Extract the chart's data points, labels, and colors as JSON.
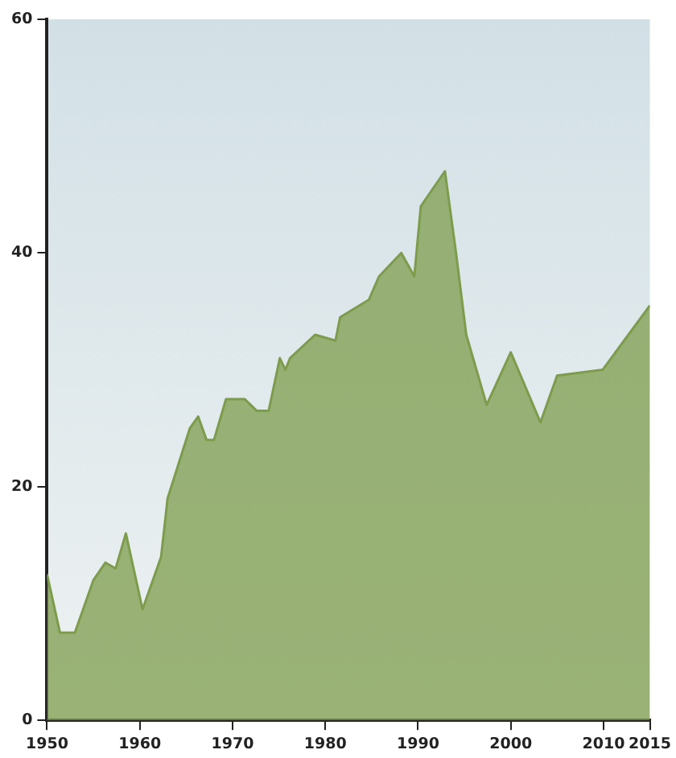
{
  "chart_data": {
    "type": "area",
    "x": [
      1950,
      1951.4,
      1953,
      1955,
      1956.3,
      1957.4,
      1958.5,
      1960.3,
      1962.3,
      1963,
      1965.4,
      1966.3,
      1967.2,
      1968,
      1969.3,
      1971.3,
      1972.6,
      1973.9,
      1975.1,
      1975.7,
      1976.2,
      1978.9,
      1981.1,
      1981.6,
      1984.7,
      1985.8,
      1988.2,
      1989.6,
      1990.3,
      1992.9,
      1994.1,
      1995.2,
      1997.4,
      2000,
      2003.2,
      2005,
      2009.9,
      2015
    ],
    "series": [
      {
        "color": "#7d9c4c",
        "values": [
          12.5,
          7.5,
          7.5,
          12,
          13.5,
          13,
          16,
          9.5,
          14,
          19,
          25,
          26,
          24,
          24,
          27.5,
          27.5,
          26.5,
          26.5,
          31,
          30,
          31,
          33,
          32.5,
          34.5,
          36,
          38,
          40,
          38,
          44,
          47,
          40,
          33,
          27,
          31.5,
          25.5,
          29.5,
          30,
          35.5
        ]
      }
    ],
    "xlim": [
      1950,
      2015
    ],
    "xticks": [
      1950,
      1960,
      1970,
      1980,
      1990,
      2000,
      2010,
      2015
    ],
    "ylim": [
      0,
      60
    ],
    "yticks": [
      0,
      20,
      40,
      60
    ],
    "grid": false,
    "legend": false
  }
}
